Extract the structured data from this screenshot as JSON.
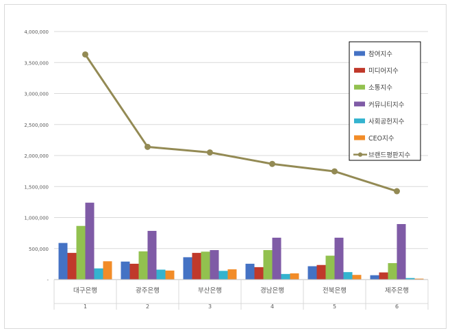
{
  "chart_data": {
    "type": "bar+line",
    "categories": [
      {
        "name": "대구은행",
        "index": "1"
      },
      {
        "name": "광주은행",
        "index": "2"
      },
      {
        "name": "부산은행",
        "index": "3"
      },
      {
        "name": "경남은행",
        "index": "4"
      },
      {
        "name": "전북은행",
        "index": "5"
      },
      {
        "name": "제주은행",
        "index": "6"
      }
    ],
    "ylim": [
      0,
      4000000
    ],
    "yticks": [
      "-",
      "500,000",
      "1,000,000",
      "1,500,000",
      "2,000,000",
      "2,500,000",
      "3,000,000",
      "3,500,000",
      "4,000,000"
    ],
    "grid": true,
    "legend_position": "right",
    "bar_series": [
      {
        "name": "참여지수",
        "color": "#4472c4",
        "values": [
          590000,
          290000,
          360000,
          255000,
          215000,
          70000
        ]
      },
      {
        "name": "미디어지수",
        "color": "#c0392b",
        "values": [
          430000,
          255000,
          430000,
          200000,
          235000,
          115000
        ]
      },
      {
        "name": "소통지수",
        "color": "#92c14f",
        "values": [
          865000,
          455000,
          450000,
          475000,
          385000,
          265000
        ]
      },
      {
        "name": "커뮤니티지수",
        "color": "#7f5ba6",
        "values": [
          1240000,
          785000,
          475000,
          675000,
          675000,
          895000
        ]
      },
      {
        "name": "사회공헌지수",
        "color": "#34b3cf",
        "values": [
          180000,
          160000,
          140000,
          90000,
          120000,
          25000
        ]
      },
      {
        "name": "CEO지수",
        "color": "#f28c28",
        "values": [
          295000,
          145000,
          165000,
          100000,
          75000,
          15000
        ]
      }
    ],
    "line_series": {
      "name": "브랜드평판지수",
      "color": "#938a54",
      "values": [
        3630000,
        2140000,
        2050000,
        1865000,
        1745000,
        1425000
      ]
    }
  }
}
